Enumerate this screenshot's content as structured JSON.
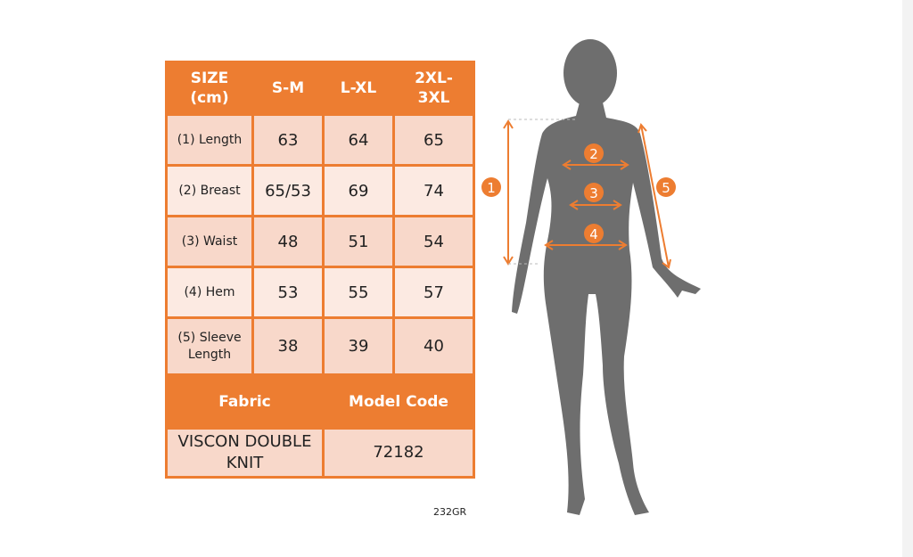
{
  "table": {
    "headers": [
      "SIZE (cm)",
      "S-M",
      "L-XL",
      "2XL-3XL"
    ],
    "header_lines": [
      [
        "SIZE",
        "(cm)"
      ],
      [
        "S-M"
      ],
      [
        "L-XL"
      ],
      [
        "2XL-",
        "3XL"
      ]
    ],
    "rows": [
      {
        "label": "(1) Length",
        "values": [
          "63",
          "64",
          "65"
        ]
      },
      {
        "label": "(2) Breast",
        "values": [
          "65/53",
          "69",
          "74"
        ]
      },
      {
        "label": "(3) Waist",
        "values": [
          "48",
          "51",
          "54"
        ]
      },
      {
        "label": "(4) Hem",
        "values": [
          "53",
          "55",
          "57"
        ]
      },
      {
        "label": "(5) Sleeve Length",
        "label_lines": [
          "(5) Sleeve",
          "Length"
        ],
        "values": [
          "38",
          "39",
          "40"
        ]
      }
    ],
    "fabric_header": "Fabric",
    "model_code_header": "Model Code",
    "fabric_lines": [
      "VISCON DOUBLE",
      "KNIT"
    ],
    "model_code": "72182"
  },
  "product_code": "232GR",
  "figure": {
    "markers": [
      "1",
      "2",
      "3",
      "4",
      "5"
    ]
  },
  "colors": {
    "accent": "#ED7D31",
    "silhouette": "#6E6E6E"
  }
}
